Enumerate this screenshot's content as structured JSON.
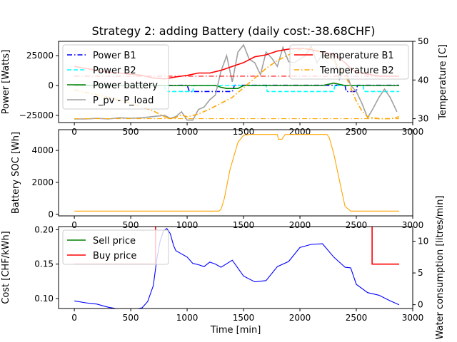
{
  "title": "Strategy 2: adding Battery (daily cost:-38.68CHF)",
  "colors": {
    "power_b1": "#0000ff",
    "power_b2": "#00ffff",
    "power_battery": "#008000",
    "p_pv_load": "#a0a0a0",
    "temp_b1": "#ff0000",
    "temp_b2": "#ffa500",
    "soc": "#ffa500",
    "sell": "#008000",
    "buy": "#ff0000",
    "water": "#0000ff"
  },
  "chart_data": [
    {
      "type": "line",
      "ylabel": "Power [Watts]",
      "y2label": "Temperature [C]",
      "xlim": [
        -140,
        3000
      ],
      "ylim": [
        -31000,
        37000
      ],
      "y2lim": [
        29,
        50
      ],
      "xticks": [
        0,
        500,
        1000,
        1500,
        2000,
        2500,
        3000
      ],
      "yticks": [
        -25000,
        0,
        25000
      ],
      "y2ticks": [
        30,
        40,
        50
      ],
      "legend_left": [
        "Power B1",
        "Power B2",
        "Power battery",
        "P_pv - P_load"
      ],
      "legend_right": [
        "Temperature B1",
        "Temperature B2"
      ],
      "series": [
        {
          "name": "Power B1",
          "axis": "left",
          "style": "dashdot",
          "x": [
            0,
            700,
            1000,
            1020,
            1400,
            1420,
            1430,
            2400,
            2410,
            2500,
            2510,
            2880
          ],
          "y": [
            100,
            100,
            200,
            -5000,
            -5000,
            200,
            200,
            200,
            -5000,
            -5000,
            200,
            200
          ]
        },
        {
          "name": "Power B2",
          "axis": "left",
          "style": "dashed",
          "x": [
            0,
            800,
            810,
            1050,
            1060,
            1700,
            1710,
            2300,
            2310,
            2560,
            2570,
            2880
          ],
          "y": [
            0,
            0,
            -5000,
            -5000,
            0,
            0,
            -5000,
            -5000,
            0,
            0,
            -5000,
            -5000
          ]
        },
        {
          "name": "Power battery",
          "axis": "left",
          "style": "solid",
          "x": [
            0,
            1250,
            1300,
            1350,
            1450,
            1500,
            2200,
            2300,
            2400,
            2880
          ],
          "y": [
            0,
            0,
            -1500,
            -2500,
            -2500,
            0,
            0,
            2000,
            0,
            0
          ]
        },
        {
          "name": "P_pv - P_load",
          "axis": "left",
          "style": "solid",
          "x": [
            0,
            100,
            200,
            300,
            400,
            500,
            600,
            700,
            800,
            850,
            900,
            950,
            1000,
            1050,
            1100,
            1150,
            1200,
            1250,
            1300,
            1350,
            1400,
            1450,
            1500,
            1550,
            1600,
            1650,
            1700,
            1750,
            1800,
            1850,
            1900,
            1950,
            2000,
            2050,
            2100,
            2150,
            2200,
            2250,
            2300,
            2350,
            2400,
            2450,
            2500,
            2550,
            2600,
            2650,
            2700,
            2750,
            2800,
            2860
          ],
          "y": [
            -28000,
            -28000,
            -27500,
            -28000,
            -27000,
            -27500,
            -27000,
            -26000,
            -25000,
            -27500,
            -26000,
            -22000,
            -29000,
            -29000,
            -20000,
            -18000,
            -12000,
            -8000,
            12000,
            25000,
            3000,
            28000,
            34000,
            22000,
            19000,
            9000,
            28000,
            23000,
            16000,
            32000,
            20000,
            19000,
            22000,
            25000,
            33000,
            19000,
            26000,
            23000,
            26000,
            5000,
            14000,
            0,
            -5000,
            -15000,
            -27000,
            -19000,
            -10000,
            -3000,
            -10000,
            -22000
          ]
        },
        {
          "name": "Temperature B1",
          "axis": "right",
          "style": "solid",
          "x": [
            0,
            100,
            200,
            300,
            400,
            500,
            600,
            700,
            800,
            900,
            1000,
            1100,
            1200,
            1300,
            1400,
            1500,
            1600,
            1700,
            1800,
            1900,
            2000,
            2050,
            2100,
            2150,
            2200,
            2300,
            2350,
            2400,
            2450,
            2500,
            2600,
            2700,
            2800,
            2880
          ],
          "y": [
            43.5,
            43,
            42.5,
            42,
            41.8,
            41.5,
            41.2,
            40.5,
            40.3,
            40.8,
            41.2,
            41.8,
            41.8,
            42.5,
            43.5,
            44.5,
            46,
            46.5,
            47.5,
            48,
            48.2,
            48.1,
            47.8,
            47.5,
            47.2,
            46.5,
            45.5,
            44.5,
            43,
            42,
            41.5,
            41,
            41,
            41
          ]
        },
        {
          "name": "Temperature B2",
          "axis": "right",
          "style": "dashdot",
          "x": [
            0,
            100,
            200,
            300,
            400,
            500,
            600,
            700,
            800,
            850,
            900,
            950,
            1000,
            1100,
            1200,
            1300,
            1400,
            1500,
            1600,
            1700,
            1800,
            1900,
            2000,
            2100,
            2150,
            2200,
            2300,
            2400,
            2450,
            2500,
            2550,
            2600,
            2700,
            2800,
            2880
          ],
          "y": [
            37.5,
            36.8,
            36.2,
            35.5,
            34.8,
            34,
            33,
            32,
            30.5,
            30,
            30.3,
            31,
            30.5,
            31.2,
            32.5,
            34,
            35.5,
            38,
            40.5,
            43,
            45,
            46.5,
            48,
            48.2,
            47.8,
            47,
            45,
            41.5,
            38,
            34.5,
            32,
            30.5,
            30,
            30,
            30.5
          ]
        },
        {
          "name": "",
          "axis": "right",
          "style": "dashdot",
          "x": [
            0,
            2880
          ],
          "y": [
            41,
            41
          ]
        },
        {
          "name": "",
          "axis": "right",
          "style": "dashdot",
          "x": [
            0,
            2880
          ],
          "y": [
            30,
            30
          ]
        }
      ]
    },
    {
      "type": "line",
      "ylabel": "Battery SOC [Wh]",
      "xlim": [
        -140,
        3000
      ],
      "ylim": [
        -100,
        5300
      ],
      "xticks": [
        0,
        500,
        1000,
        1500,
        2000,
        2500,
        3000
      ],
      "yticks": [
        0,
        2000,
        4000
      ],
      "series": [
        {
          "name": "",
          "axis": "left",
          "style": "solid",
          "x": [
            0,
            1280,
            1300,
            1330,
            1380,
            1450,
            1500,
            1550,
            1800,
            1810,
            1840,
            1870,
            2240,
            2260,
            2300,
            2360,
            2400,
            2450,
            2880
          ],
          "y": [
            200,
            200,
            300,
            1000,
            2800,
            4500,
            4950,
            5000,
            5000,
            4700,
            4700,
            5000,
            5000,
            4800,
            3800,
            1800,
            500,
            200,
            200
          ]
        }
      ]
    },
    {
      "type": "line",
      "ylabel": "Cost [CHF/kWh]",
      "y2label": "Water consumption [litres/min]",
      "xlabel": "Time [min]",
      "xlim": [
        -140,
        3000
      ],
      "ylim": [
        0.0855,
        0.2045
      ],
      "y2lim": [
        -0.6,
        12.3
      ],
      "xticks": [
        0,
        500,
        1000,
        1500,
        2000,
        2500,
        3000
      ],
      "yticks": [
        0.1,
        0.15,
        0.2
      ],
      "y2ticks": [
        0,
        5,
        10
      ],
      "legend_left": [
        "Sell price",
        "Buy price"
      ],
      "series": [
        {
          "name": "Sell price",
          "axis": "left",
          "style": "solid",
          "x": [
            0,
            2880
          ],
          "y": [
            0.08,
            0.08
          ]
        },
        {
          "name": "Buy price",
          "axis": "left",
          "style": "solid",
          "x": [
            0,
            720,
            720,
            2640,
            2640,
            2880
          ],
          "y": [
            0.15,
            0.15,
            0.22,
            0.22,
            0.15,
            0.15
          ]
        },
        {
          "name": "",
          "axis": "right",
          "style": "solid",
          "x": [
            0,
            100,
            200,
            300,
            400,
            500,
            600,
            650,
            700,
            730,
            760,
            790,
            820,
            850,
            880,
            900,
            950,
            1000,
            1050,
            1100,
            1150,
            1200,
            1250,
            1300,
            1400,
            1500,
            1600,
            1700,
            1800,
            1900,
            2000,
            2100,
            2200,
            2300,
            2400,
            2450,
            2500,
            2600,
            2700,
            2800,
            2880
          ],
          "y": [
            0.6,
            0.3,
            0.1,
            -0.4,
            -0.7,
            -0.8,
            -0.5,
            0.5,
            3,
            7,
            10,
            11.6,
            12,
            11.2,
            9.3,
            8.5,
            8,
            7.5,
            6.5,
            6.3,
            6,
            6.7,
            6.4,
            5.9,
            7,
            4.5,
            3.6,
            3.8,
            6,
            6.8,
            9,
            9.5,
            9.6,
            7.5,
            5.9,
            5.8,
            3.2,
            1.9,
            1.5,
            0.6,
            0
          ]
        }
      ]
    }
  ]
}
